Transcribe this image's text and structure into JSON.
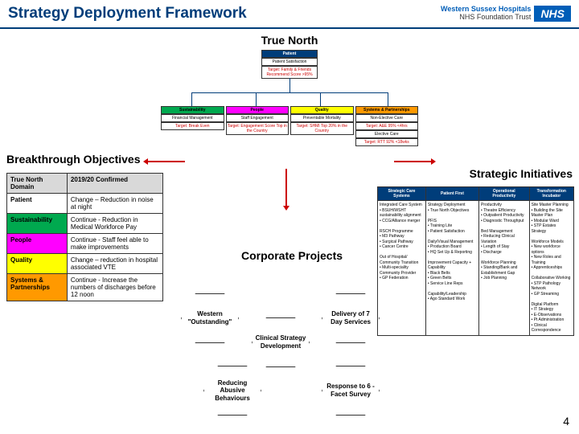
{
  "title": "Strategy Deployment Framework",
  "logo": {
    "nhs": "NHS",
    "line1": "Western Sussex Hospitals",
    "line2": "NHS Foundation Trust"
  },
  "trueNorth": {
    "header": "True North",
    "top": {
      "hdr": "Patient",
      "body": "Patient Satisfaction",
      "sub": "Target: Family & Friends Recommend Score >95%"
    },
    "cols": [
      {
        "hdr": "Sustainability",
        "body": "Financial Management",
        "sub": "Target: Break Even",
        "bg": "#00a94f"
      },
      {
        "hdr": "People",
        "body": "Staff Engagement",
        "sub": "Target: Engagement Score Top in the Country",
        "bg": "#ff00ff"
      },
      {
        "hdr": "Quality",
        "body": "Preventable Mortality",
        "sub": "Target: SHMI Top 20% in the Country",
        "bg": "#ffff00"
      },
      {
        "hdr": "Systems & Partnerships",
        "body": "Non-Elective Care",
        "sub": "Target: A&E 95% <4hrs",
        "bg": "#ff9900",
        "body2": "Elective Care",
        "sub2": "Target: RTT 92% <18wks"
      }
    ]
  },
  "bo": {
    "header": "Breakthrough Objectives",
    "th1": "True North Domain",
    "th2": "2019/20 Confirmed",
    "rows": [
      {
        "d": "Patient",
        "t": "Change – Reduction in noise at night",
        "bg": "#ffffff"
      },
      {
        "d": "Sustainability",
        "t": "Continue - Reduction in Medical Workforce Pay",
        "bg": "#00a94f"
      },
      {
        "d": "People",
        "t": "Continue - Staff feel able to make improvements",
        "bg": "#ff00ff"
      },
      {
        "d": "Quality",
        "t": "Change – reduction in hospital associated VTE",
        "bg": "#ffff00"
      },
      {
        "d": "Systems & Partnerships",
        "t": "Continue - Increase the numbers of discharges before 12 noon",
        "bg": "#ff9900"
      }
    ]
  },
  "si": {
    "header": "Strategic Initiatives",
    "cols": [
      "Strategic Care Systems",
      "Patient First",
      "Operational Productivity",
      "Transformation Incubator"
    ],
    "cells": [
      "Integrated Care System\n• BSUH/WSHT sustainability alignment\n• CCG/Alliance merger\n\nRSCH Programme\n• M3 Pathway\n• Surgical Pathway\n• Cancer Centre\n\nOut of Hospital/\nCommunity Transition\n• Multi-speciality Community Provider\n• GP Federation",
      "Strategy Deployment\n• True North Objectives\n\nPFIS\n• Training Lite\n• Patient Satisfaction\n\nDaily/Visual Management\n• Production Board\n• HQ Set Up & Reporting\n\nImprovement Capacity + Capability\n• Black Belts\n• Green Belts\n• Service Line Reps\n\nCapability/Leadership\n• Ago Standard Work",
      "Productivity\n• Theatre Efficiency\n• Outpatient Productivity\n• Diagnostic Throughput\n\nBed Management\n• Reducing Clinical Variation\n• Length of Stay\n• Discharge\n\nWorkforce Planning\n• Standing/Bank and Establishment Gap\n• Job Planning",
      "Site Master Planning\n• Building the Site Master Plan\n• Modular Ward\n• STP Estates Strategy\n\nWorkforce Models\n• New workforce options\n• New Roles and Training\n• Apprenticeships\n\nCollaborative Working\n• STP Pathology Network\n• GP Streaming\n\nDigital Platform\n• IT Strategy\n• E-Observations\n• Pt Administration\n• Clinical Correspondence"
    ]
  },
  "cp": {
    "header": "Corporate Projects",
    "hex": [
      "Western \"Outstanding\"",
      "Clinical Strategy Development",
      "Delivery of 7 Day Services",
      "Reducing Abusive Behaviours",
      "Response to 6 -Facet Survey"
    ]
  },
  "pageNum": "4",
  "colors": {
    "nhs": "#005eb8",
    "darknav": "#003d7a",
    "red": "#c00"
  }
}
